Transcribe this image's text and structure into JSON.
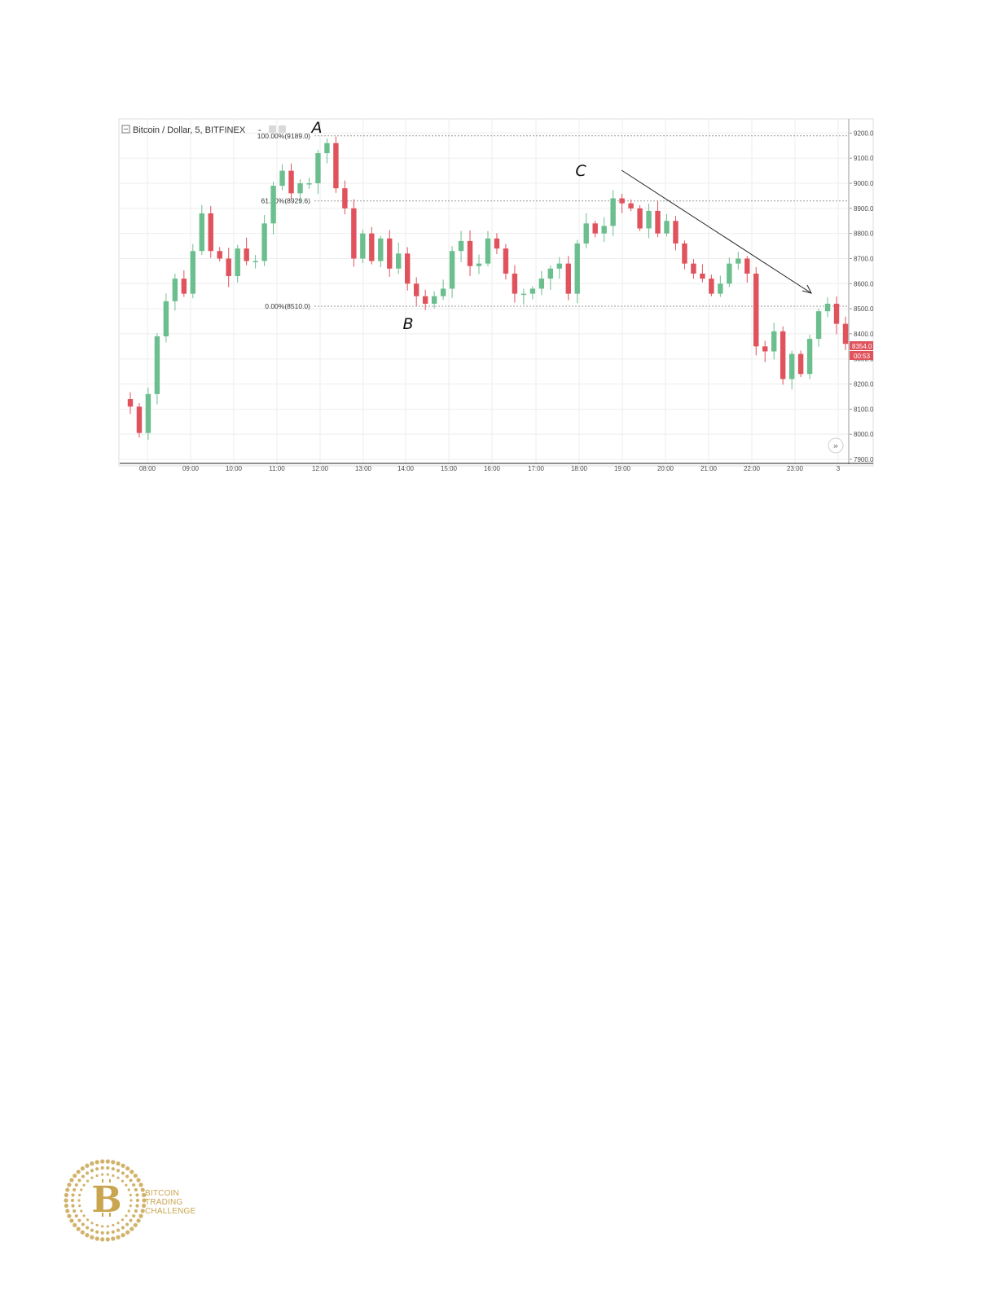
{
  "chart_data": {
    "type": "candlestick",
    "title": "Bitcoin / Dollar, 5, BITFINEX",
    "title_suffix": "-",
    "xlabel": "",
    "ylabel": "",
    "ylim": [
      7900,
      9250
    ],
    "x_ticks": [
      "08:00",
      "09:00",
      "10:00",
      "11:00",
      "12:00",
      "13:00",
      "14:00",
      "15:00",
      "16:00",
      "17:00",
      "18:00",
      "19:00",
      "20:00",
      "21:00",
      "22:00",
      "23:00",
      "3"
    ],
    "y_ticks": [
      "7900.0",
      "8000.0",
      "8100.0",
      "8200.0",
      "8300.0",
      "8400.0",
      "8500.0",
      "8600.0",
      "8700.0",
      "8800.0",
      "8900.0",
      "9000.0",
      "9100.0",
      "9200.0"
    ],
    "grid": true,
    "colors": {
      "up": "#6bbf8e",
      "down": "#e0525c",
      "grid": "#eeeeee",
      "fib": "#9a9a9a",
      "arrow": "#222222"
    },
    "close_path": [
      8140,
      8110,
      8005,
      8160,
      8390,
      8530,
      8620,
      8560,
      8730,
      8880,
      8730,
      8700,
      8630,
      8740,
      8690,
      8690,
      8840,
      8990,
      9050,
      8960,
      9000,
      9000,
      9120,
      9160,
      8980,
      8900,
      8700,
      8800,
      8690,
      8780,
      8660,
      8720,
      8600,
      8550,
      8520,
      8550,
      8580,
      8730,
      8770,
      8670,
      8680,
      8780,
      8740,
      8640,
      8560,
      8560,
      8580,
      8620,
      8660,
      8680,
      8560,
      8760,
      8840,
      8800,
      8830,
      8940,
      8920,
      8900,
      8820,
      8890,
      8800,
      8850,
      8760,
      8680,
      8640,
      8620,
      8560,
      8600,
      8680,
      8700,
      8640,
      8350,
      8330,
      8410,
      8220,
      8320,
      8240,
      8380,
      8490,
      8520,
      8440,
      8360
    ],
    "last_price": "8354.0",
    "countdown": "00:53",
    "fibonacci": [
      {
        "label": "100.00%(9189.0)",
        "value": 9189.0
      },
      {
        "label": "61.80%(8929.6)",
        "value": 8929.6
      },
      {
        "label": "0.00%(8510.0)",
        "value": 8510.0
      }
    ],
    "annotations": [
      {
        "label": "A"
      },
      {
        "label": "B"
      },
      {
        "label": "C"
      }
    ],
    "scroll_button": "»"
  },
  "logo": {
    "symbol": "B",
    "lines": [
      "BITCOIN",
      "TRADING",
      "CHALLENGE"
    ],
    "color": "#c9a550"
  }
}
